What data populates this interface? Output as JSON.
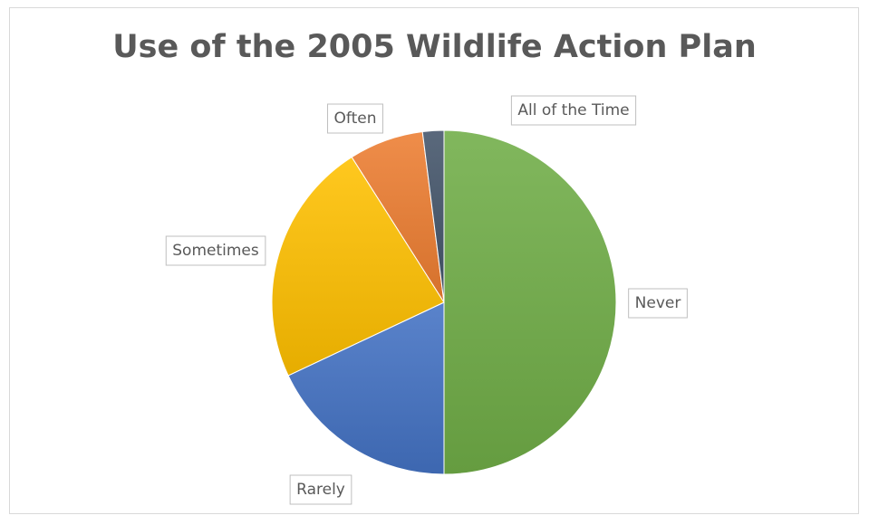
{
  "chart_data": {
    "type": "pie",
    "title": "Use of the 2005 Wildlife Action Plan",
    "slices": [
      {
        "label": "Never",
        "value": 50,
        "color": "#70ad47"
      },
      {
        "label": "Rarely",
        "value": 18,
        "color": "#4472c4"
      },
      {
        "label": "Sometimes",
        "value": 23,
        "color": "#ffc000"
      },
      {
        "label": "Often",
        "value": 7,
        "color": "#ed7d31"
      },
      {
        "label": "All of the Time",
        "value": 2,
        "color": "#44546a"
      }
    ],
    "legend": "none",
    "data_labels": "category names"
  }
}
